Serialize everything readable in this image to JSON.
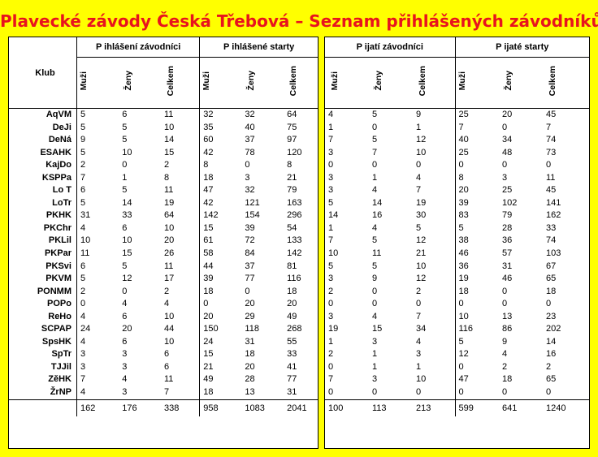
{
  "title": "Plavecké závody Česká Třebová – Seznam přihlášených závodníků",
  "header": {
    "club": "Klub",
    "group1": "P ihlášení závodníci",
    "group2": "P ihlášené starty",
    "group3": "P ijatí závodníci",
    "group4": "P ijaté starty",
    "muzi": "Muži",
    "zeny": "Ženy",
    "celkem": "Celkem"
  },
  "rows": [
    {
      "club": "AqVM",
      "v": [
        "5",
        "6",
        "11",
        "32",
        "32",
        "64",
        "4",
        "5",
        "9",
        "25",
        "20",
        "45"
      ]
    },
    {
      "club": "DeJi",
      "v": [
        "5",
        "5",
        "10",
        "35",
        "40",
        "75",
        "1",
        "0",
        "1",
        "7",
        "0",
        "7"
      ]
    },
    {
      "club": "DeNá",
      "v": [
        "9",
        "5",
        "14",
        "60",
        "37",
        "97",
        "7",
        "5",
        "12",
        "40",
        "34",
        "74"
      ]
    },
    {
      "club": "ESAHK",
      "v": [
        "5",
        "10",
        "15",
        "42",
        "78",
        "120",
        "3",
        "7",
        "10",
        "25",
        "48",
        "73"
      ]
    },
    {
      "club": "KajDo",
      "v": [
        "2",
        "0",
        "2",
        "8",
        "0",
        "8",
        "0",
        "0",
        "0",
        "0",
        "0",
        "0"
      ]
    },
    {
      "club": "KSPPa",
      "v": [
        "7",
        "1",
        "8",
        "18",
        "3",
        "21",
        "3",
        "1",
        "4",
        "8",
        "3",
        "11"
      ]
    },
    {
      "club": "Lo T",
      "v": [
        "6",
        "5",
        "11",
        "47",
        "32",
        "79",
        "3",
        "4",
        "7",
        "20",
        "25",
        "45"
      ]
    },
    {
      "club": "LoTr",
      "v": [
        "5",
        "14",
        "19",
        "42",
        "121",
        "163",
        "5",
        "14",
        "19",
        "39",
        "102",
        "141"
      ]
    },
    {
      "club": "PKHK",
      "v": [
        "31",
        "33",
        "64",
        "142",
        "154",
        "296",
        "14",
        "16",
        "30",
        "83",
        "79",
        "162"
      ]
    },
    {
      "club": "PKChr",
      "v": [
        "4",
        "6",
        "10",
        "15",
        "39",
        "54",
        "1",
        "4",
        "5",
        "5",
        "28",
        "33"
      ]
    },
    {
      "club": "PKLil",
      "v": [
        "10",
        "10",
        "20",
        "61",
        "72",
        "133",
        "7",
        "5",
        "12",
        "38",
        "36",
        "74"
      ]
    },
    {
      "club": "PKPar",
      "v": [
        "11",
        "15",
        "26",
        "58",
        "84",
        "142",
        "10",
        "11",
        "21",
        "46",
        "57",
        "103"
      ]
    },
    {
      "club": "PKSvi",
      "v": [
        "6",
        "5",
        "11",
        "44",
        "37",
        "81",
        "5",
        "5",
        "10",
        "36",
        "31",
        "67"
      ]
    },
    {
      "club": "PKVM",
      "v": [
        "5",
        "12",
        "17",
        "39",
        "77",
        "116",
        "3",
        "9",
        "12",
        "19",
        "46",
        "65"
      ]
    },
    {
      "club": "PONMM",
      "v": [
        "2",
        "0",
        "2",
        "18",
        "0",
        "18",
        "2",
        "0",
        "2",
        "18",
        "0",
        "18"
      ]
    },
    {
      "club": "POPo",
      "v": [
        "0",
        "4",
        "4",
        "0",
        "20",
        "20",
        "0",
        "0",
        "0",
        "0",
        "0",
        "0"
      ]
    },
    {
      "club": "ReHo",
      "v": [
        "4",
        "6",
        "10",
        "20",
        "29",
        "49",
        "3",
        "4",
        "7",
        "10",
        "13",
        "23"
      ]
    },
    {
      "club": "SCPAP",
      "v": [
        "24",
        "20",
        "44",
        "150",
        "118",
        "268",
        "19",
        "15",
        "34",
        "116",
        "86",
        "202"
      ]
    },
    {
      "club": "SpsHK",
      "v": [
        "4",
        "6",
        "10",
        "24",
        "31",
        "55",
        "1",
        "3",
        "4",
        "5",
        "9",
        "14"
      ]
    },
    {
      "club": "SpTr",
      "v": [
        "3",
        "3",
        "6",
        "15",
        "18",
        "33",
        "2",
        "1",
        "3",
        "12",
        "4",
        "16"
      ]
    },
    {
      "club": "TJJil",
      "v": [
        "3",
        "3",
        "6",
        "21",
        "20",
        "41",
        "0",
        "1",
        "1",
        "0",
        "2",
        "2"
      ]
    },
    {
      "club": "ZěHK",
      "v": [
        "7",
        "4",
        "11",
        "49",
        "28",
        "77",
        "7",
        "3",
        "10",
        "47",
        "18",
        "65"
      ]
    },
    {
      "club": "ŽrNP",
      "v": [
        "4",
        "3",
        "7",
        "18",
        "13",
        "31",
        "0",
        "0",
        "0",
        "0",
        "0",
        "0"
      ]
    }
  ],
  "totals": [
    "162",
    "176",
    "338",
    "958",
    "1083",
    "2041",
    "100",
    "113",
    "213",
    "599",
    "641",
    "1240"
  ]
}
